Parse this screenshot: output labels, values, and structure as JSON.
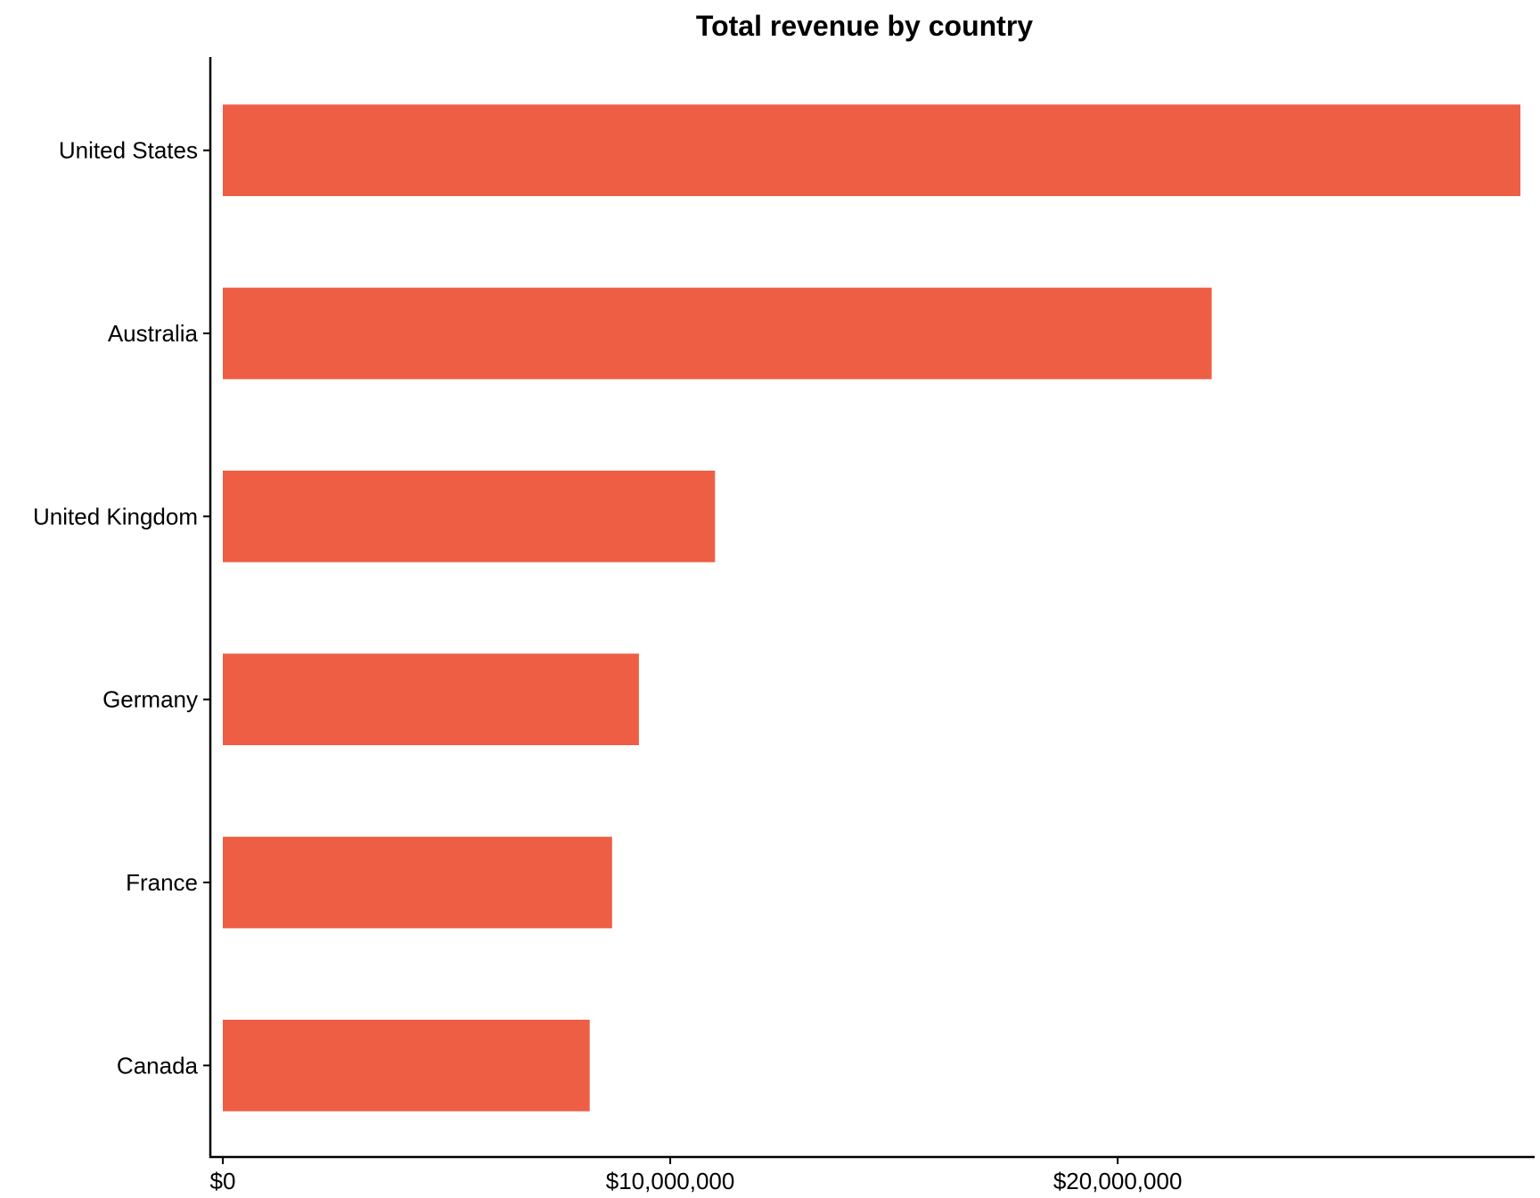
{
  "chart_data": {
    "type": "bar",
    "orientation": "horizontal",
    "title": "Total revenue by country",
    "xlabel": "",
    "ylabel": "",
    "categories": [
      "United States",
      "Australia",
      "United Kingdom",
      "Germany",
      "France",
      "Canada"
    ],
    "values": [
      29000000,
      22100000,
      11000000,
      9300000,
      8700000,
      8200000
    ],
    "x_ticks": [
      0,
      10000000,
      20000000
    ],
    "x_tick_labels": [
      "$0",
      "$10,000,000",
      "$20,000,000"
    ],
    "xlim": [
      0,
      29000000
    ],
    "grid": false,
    "legend": "none",
    "bar_color": "#EE5E45"
  }
}
